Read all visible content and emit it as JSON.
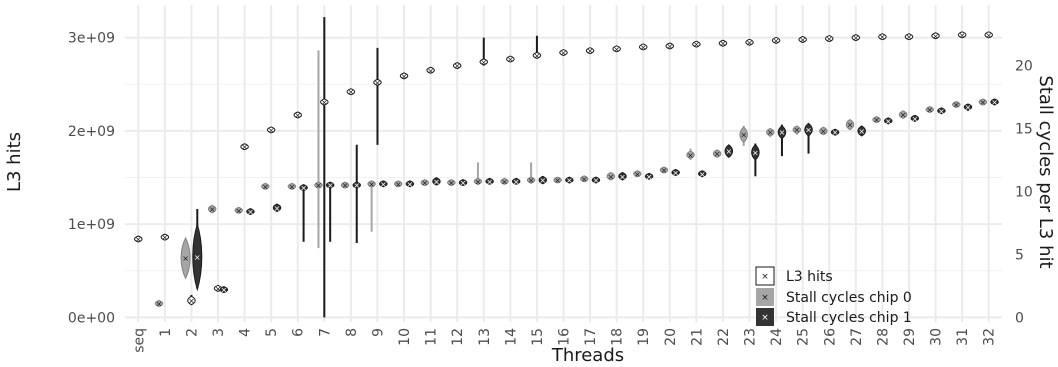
{
  "chart_data": {
    "type": "violin",
    "xlabel": "Threads",
    "ylabel": "L3 hits",
    "y2label": "Stall cycles per L3 hit",
    "categories": [
      "seq",
      "1",
      "2",
      "3",
      "4",
      "5",
      "6",
      "7",
      "8",
      "9",
      "10",
      "11",
      "12",
      "13",
      "14",
      "15",
      "16",
      "17",
      "18",
      "19",
      "20",
      "21",
      "22",
      "23",
      "24",
      "25",
      "26",
      "27",
      "28",
      "29",
      "30",
      "31",
      "32"
    ],
    "y_ticks": [
      "0e+00",
      "1e+09",
      "2e+09",
      "3e+09"
    ],
    "y_ticks_values": [
      0,
      1000000000,
      2000000000,
      3000000000
    ],
    "y2_ticks": [
      "0",
      "5",
      "10",
      "15",
      "20"
    ],
    "y2_ticks_values": [
      0,
      5,
      10,
      15,
      20
    ],
    "ylim": [
      -50000000,
      3350000000
    ],
    "y2lim": [
      -0.37,
      24.8
    ],
    "grid": true,
    "legend_position": "right-inside",
    "series": [
      {
        "name": "L3 hits",
        "color": "#ffffff",
        "values": [
          840000000,
          860000000,
          180000000,
          310000000,
          1830000000,
          2010000000,
          2170000000,
          2310000000,
          2420000000,
          2520000000,
          2590000000,
          2650000000,
          2700000000,
          2740000000,
          2770000000,
          2810000000,
          2840000000,
          2860000000,
          2880000000,
          2900000000,
          2910000000,
          2930000000,
          2940000000,
          2950000000,
          2970000000,
          2980000000,
          2990000000,
          3000000000,
          3010000000,
          3010000000,
          3020000000,
          3030000000,
          3030000000
        ],
        "spread": [
          25000000,
          30000000,
          45000000,
          15000000,
          8000000,
          8000000,
          8000000,
          12000000,
          8000000,
          8000000,
          8000000,
          8000000,
          8000000,
          8000000,
          8000000,
          8000000,
          8000000,
          8000000,
          8000000,
          8000000,
          8000000,
          8000000,
          8000000,
          8000000,
          8000000,
          8000000,
          8000000,
          8000000,
          8000000,
          8000000,
          8000000,
          8000000,
          8000000
        ],
        "low": [
          840000000,
          860000000,
          150000000,
          290000000,
          1830000000,
          2010000000,
          2170000000,
          0,
          2420000000,
          1850000000,
          2590000000,
          2650000000,
          2700000000,
          2700000000,
          2770000000,
          2780000000,
          2840000000,
          2860000000,
          2880000000,
          2900000000,
          2910000000,
          2930000000,
          2940000000,
          2950000000,
          2970000000,
          2980000000,
          2990000000,
          3000000000,
          3010000000,
          3010000000,
          3020000000,
          3030000000,
          3030000000
        ],
        "high": [
          840000000,
          860000000,
          240000000,
          310000000,
          1830000000,
          2010000000,
          2170000000,
          3220000000,
          2420000000,
          2890000000,
          2590000000,
          2650000000,
          2700000000,
          3000000000,
          2770000000,
          3020000000,
          2840000000,
          2860000000,
          2880000000,
          2900000000,
          2910000000,
          2930000000,
          2940000000,
          2950000000,
          2970000000,
          2980000000,
          2990000000,
          3000000000,
          3010000000,
          3010000000,
          3020000000,
          3030000000,
          3030000000
        ]
      },
      {
        "name": "Stall cycles chip 0",
        "color": "#a6a6a6",
        "values": [
          null,
          1.1,
          4.7,
          8.6,
          8.5,
          10.4,
          10.4,
          10.5,
          10.5,
          10.6,
          10.6,
          10.7,
          10.7,
          10.8,
          10.8,
          10.9,
          10.9,
          11.0,
          11.2,
          11.4,
          11.7,
          12.9,
          13.0,
          14.5,
          14.7,
          14.9,
          14.8,
          15.3,
          15.7,
          16.1,
          16.5,
          16.9,
          17.1
        ],
        "spread": [
          0,
          0.1,
          1.6,
          0.3,
          0.05,
          0.2,
          0.2,
          0.2,
          0.2,
          0.2,
          0.2,
          0.2,
          0.2,
          0.2,
          0.2,
          0.2,
          0.2,
          0.2,
          0.3,
          0.2,
          0.2,
          0.3,
          0.3,
          0.6,
          0.3,
          0.3,
          0.3,
          0.4,
          0.2,
          0.3,
          0.2,
          0.2,
          0.2
        ],
        "low": [
          null,
          1.1,
          3.2,
          8.4,
          8.5,
          10.3,
          10.3,
          5.5,
          10.4,
          6.8,
          10.5,
          10.6,
          10.6,
          10.5,
          10.7,
          10.6,
          10.8,
          10.9,
          11.0,
          11.2,
          11.5,
          12.5,
          12.7,
          13.6,
          14.3,
          14.5,
          14.6,
          15.0,
          15.6,
          15.9,
          16.4,
          16.8,
          17.0
        ],
        "high": [
          null,
          1.1,
          5.8,
          8.8,
          8.5,
          10.5,
          10.5,
          21.2,
          10.6,
          10.7,
          10.7,
          10.8,
          10.8,
          12.3,
          10.9,
          12.3,
          11.0,
          11.1,
          11.3,
          11.5,
          11.9,
          13.4,
          13.2,
          15.2,
          15.0,
          15.2,
          15.1,
          15.6,
          15.8,
          16.3,
          16.6,
          17.0,
          17.2
        ]
      },
      {
        "name": "Stall cycles chip 1",
        "color": "#333333",
        "values": [
          null,
          null,
          4.8,
          2.2,
          8.4,
          8.7,
          10.3,
          10.5,
          10.5,
          10.6,
          10.6,
          10.8,
          10.7,
          10.8,
          10.8,
          10.9,
          10.9,
          10.9,
          11.2,
          11.2,
          11.5,
          11.4,
          13.2,
          13.1,
          14.7,
          14.9,
          14.7,
          14.8,
          15.6,
          15.8,
          16.4,
          16.7,
          17.1
        ],
        "spread": [
          0,
          0,
          2.6,
          0.2,
          0.05,
          0.3,
          0.2,
          0.2,
          0.2,
          0.2,
          0.2,
          0.3,
          0.2,
          0.2,
          0.2,
          0.3,
          0.2,
          0.2,
          0.3,
          0.2,
          0.2,
          0.2,
          0.5,
          0.6,
          0.5,
          0.5,
          0.2,
          0.4,
          0.2,
          0.2,
          0.2,
          0.2,
          0.2
        ],
        "low": [
          null,
          null,
          2.3,
          2.1,
          8.4,
          8.5,
          6.0,
          6.0,
          5.9,
          10.4,
          10.4,
          10.5,
          10.6,
          10.6,
          10.7,
          10.7,
          10.8,
          10.8,
          10.9,
          11.0,
          11.3,
          11.3,
          12.9,
          11.2,
          12.8,
          13.0,
          14.6,
          14.4,
          15.5,
          15.7,
          16.3,
          16.4,
          17.0
        ],
        "high": [
          null,
          null,
          8.6,
          2.4,
          8.5,
          9.0,
          10.5,
          10.7,
          13.7,
          10.7,
          10.8,
          11.0,
          10.8,
          11.0,
          11.0,
          11.2,
          11.0,
          11.1,
          11.5,
          11.4,
          11.7,
          11.6,
          13.6,
          13.8,
          15.3,
          15.4,
          14.9,
          15.1,
          15.8,
          16.0,
          16.5,
          16.8,
          17.2
        ]
      }
    ]
  }
}
